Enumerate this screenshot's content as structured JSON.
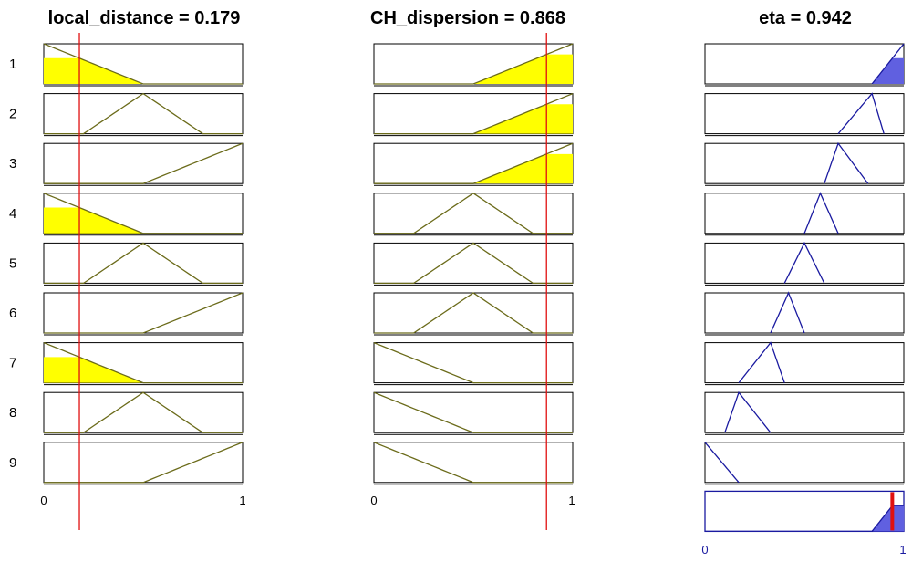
{
  "variables": [
    {
      "name": "local_distance",
      "value": "0.179",
      "title": "local_distance = 0.179",
      "axis_min": "0",
      "axis_max": "1"
    },
    {
      "name": "CH_dispersion",
      "value": "0.868",
      "title": "CH_dispersion = 0.868",
      "axis_min": "0",
      "axis_max": "1"
    }
  ],
  "output": {
    "name": "eta",
    "value": "0.942",
    "title": "eta = 0.942",
    "axis_min": "0",
    "axis_max": "1"
  },
  "rule_numbers": [
    "1",
    "2",
    "3",
    "4",
    "5",
    "6",
    "7",
    "8",
    "9"
  ],
  "input_values": [
    0.179,
    0.868
  ],
  "output_value": 0.942,
  "input_mfs": {
    "low": [
      [
        0,
        1
      ],
      [
        0.5,
        0
      ]
    ],
    "mid": [
      [
        0.2,
        0
      ],
      [
        0.5,
        1
      ],
      [
        0.8,
        0
      ]
    ],
    "high": [
      [
        0.5,
        0
      ],
      [
        1,
        1
      ]
    ]
  },
  "rules": [
    {
      "in": [
        "low",
        "high"
      ],
      "out": [
        [
          0.84,
          0
        ],
        [
          1,
          1
        ]
      ]
    },
    {
      "in": [
        "mid",
        "high"
      ],
      "out": [
        [
          0.67,
          0
        ],
        [
          0.84,
          1
        ],
        [
          0.9,
          0
        ]
      ]
    },
    {
      "in": [
        "high",
        "high"
      ],
      "out": [
        [
          0.6,
          0
        ],
        [
          0.67,
          1
        ],
        [
          0.82,
          0
        ]
      ]
    },
    {
      "in": [
        "low",
        "mid"
      ],
      "out": [
        [
          0.5,
          0
        ],
        [
          0.58,
          1
        ],
        [
          0.67,
          0
        ]
      ]
    },
    {
      "in": [
        "mid",
        "mid"
      ],
      "out": [
        [
          0.4,
          0
        ],
        [
          0.5,
          1
        ],
        [
          0.6,
          0
        ]
      ]
    },
    {
      "in": [
        "high",
        "mid"
      ],
      "out": [
        [
          0.33,
          0
        ],
        [
          0.42,
          1
        ],
        [
          0.5,
          0
        ]
      ]
    },
    {
      "in": [
        "low",
        "low"
      ],
      "out": [
        [
          0.17,
          0
        ],
        [
          0.33,
          1
        ],
        [
          0.4,
          0
        ]
      ]
    },
    {
      "in": [
        "mid",
        "low"
      ],
      "out": [
        [
          0.1,
          0
        ],
        [
          0.17,
          1
        ],
        [
          0.33,
          0
        ]
      ]
    },
    {
      "in": [
        "high",
        "low"
      ],
      "out": [
        [
          0,
          1
        ],
        [
          0.17,
          0
        ]
      ]
    }
  ],
  "colors": {
    "border": "#000000",
    "input_mf_line": "#6b6b1a",
    "input_fill": "#ffff00",
    "output_mf_line": "#1a1aa0",
    "output_fill": "#6060e0",
    "cursor": "#e01010"
  }
}
